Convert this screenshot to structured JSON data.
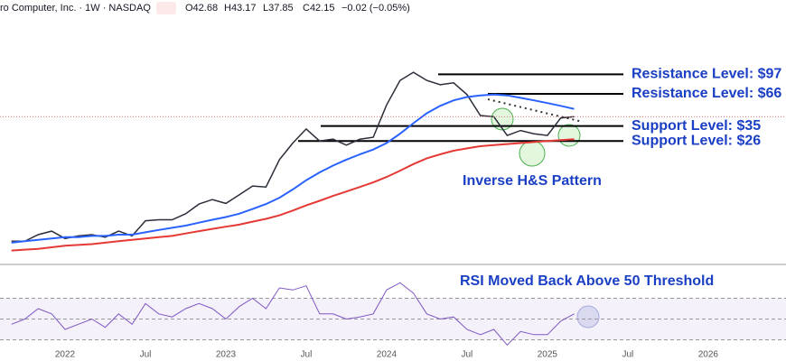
{
  "header": {
    "symbol": "ro Computer, Inc. · 1W · NASDAQ",
    "open": "O42.68",
    "high": "H43.17",
    "low": "L37.85",
    "close": "C42.15",
    "change": "−0.02 (−0.05%)"
  },
  "chart_data": [
    {
      "type": "line",
      "log_scale": true,
      "ylim": [
        2.2,
        420
      ],
      "categories": [
        null,
        null,
        null,
        null,
        "2022",
        null,
        null,
        null,
        null,
        null,
        "Jul",
        null,
        null,
        null,
        null,
        null,
        "2023",
        null,
        null,
        null,
        null,
        null,
        "Jul",
        null,
        null,
        null,
        null,
        null,
        "2024",
        null,
        null,
        null,
        null,
        null,
        "Jul",
        null,
        null,
        null,
        null,
        null,
        "2025",
        null,
        null,
        null,
        null,
        null,
        "Jul",
        null,
        null,
        null,
        null,
        null,
        "2026",
        null,
        null,
        null
      ],
      "series": [
        {
          "color": "#2a2e39",
          "values": [
            3.6,
            3.6,
            4.1,
            4.4,
            3.8,
            4.0,
            4.1,
            3.9,
            4.4,
            4.0,
            5.4,
            5.5,
            5.5,
            6.2,
            7.5,
            8.2,
            7.6,
            9.0,
            10.7,
            10.5,
            18,
            25,
            33,
            26,
            27,
            24,
            27,
            28,
            53,
            86,
            101,
            86,
            79,
            82,
            65,
            43,
            42,
            29,
            32,
            30,
            29,
            41,
            42,
            null,
            null,
            null,
            null,
            null,
            null,
            null,
            null,
            null,
            null,
            null,
            null,
            null
          ]
        },
        {
          "color": "#2962ff",
          "values": [
            3.5,
            3.6,
            3.7,
            3.8,
            3.9,
            3.9,
            4.0,
            4.0,
            4.1,
            4.1,
            4.3,
            4.5,
            4.7,
            4.9,
            5.2,
            5.5,
            5.8,
            6.2,
            6.8,
            7.5,
            8.5,
            10,
            12,
            14,
            16,
            18,
            20,
            22,
            25,
            30,
            37,
            45,
            52,
            58,
            62,
            64,
            65,
            64,
            61,
            58,
            55,
            52,
            49,
            null,
            null,
            null,
            null,
            null,
            null,
            null,
            null,
            null,
            null,
            null,
            null,
            null
          ]
        },
        {
          "color": "#e53935",
          "values": [
            3.0,
            3.05,
            3.1,
            3.2,
            3.3,
            3.35,
            3.4,
            3.5,
            3.6,
            3.7,
            3.8,
            3.9,
            4.0,
            4.2,
            4.4,
            4.6,
            4.8,
            5.0,
            5.3,
            5.6,
            6.0,
            6.6,
            7.3,
            8.0,
            8.8,
            9.6,
            10.5,
            11.5,
            12.8,
            14.5,
            16.5,
            18.5,
            20,
            21.5,
            22.5,
            23.5,
            24,
            24.5,
            25,
            25.5,
            26,
            26.5,
            27,
            null,
            null,
            null,
            null,
            null,
            null,
            null,
            null,
            null,
            null,
            null,
            null,
            null
          ]
        }
      ],
      "levels": [
        {
          "label": "Resistance  Level: $97",
          "value": 97
        },
        {
          "label": "Resistance Level: $66",
          "value": 66
        },
        {
          "label": "Support Level: $35",
          "value": 35
        },
        {
          "label": "Support Level: $26",
          "value": 26
        }
      ],
      "annotations": [
        "Inverse H&S Pattern"
      ]
    },
    {
      "type": "line",
      "ylim": [
        0,
        100
      ],
      "levels": [
        30,
        50,
        70
      ],
      "annotations": [
        "RSI Moved Back Above 50 Threshold"
      ],
      "series": [
        {
          "color": "#7e57c2",
          "values": [
            45,
            50,
            60,
            55,
            40,
            45,
            50,
            42,
            55,
            45,
            65,
            55,
            52,
            60,
            65,
            60,
            50,
            62,
            70,
            60,
            80,
            78,
            82,
            55,
            55,
            50,
            52,
            55,
            78,
            85,
            75,
            55,
            50,
            52,
            40,
            35,
            40,
            25,
            38,
            35,
            35,
            48,
            55,
            null,
            null,
            null,
            null,
            null,
            null,
            null,
            null,
            null,
            null,
            null,
            null,
            null
          ]
        }
      ]
    }
  ]
}
